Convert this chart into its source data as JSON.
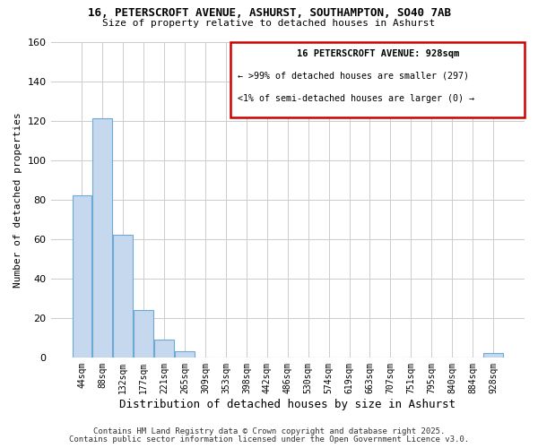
{
  "title": "16, PETERSCROFT AVENUE, ASHURST, SOUTHAMPTON, SO40 7AB",
  "subtitle": "Size of property relative to detached houses in Ashurst",
  "xlabel": "Distribution of detached houses by size in Ashurst",
  "ylabel": "Number of detached properties",
  "bar_values": [
    82,
    121,
    62,
    24,
    9,
    3,
    0,
    0,
    0,
    0,
    0,
    0,
    0,
    0,
    0,
    0,
    0,
    0,
    0,
    0,
    2
  ],
  "bar_labels": [
    "44sqm",
    "88sqm",
    "132sqm",
    "177sqm",
    "221sqm",
    "265sqm",
    "309sqm",
    "353sqm",
    "398sqm",
    "442sqm",
    "486sqm",
    "530sqm",
    "574sqm",
    "619sqm",
    "663sqm",
    "707sqm",
    "751sqm",
    "795sqm",
    "840sqm",
    "884sqm",
    "928sqm"
  ],
  "bar_color": "#c5d8ed",
  "bar_edge_color": "#6aaad4",
  "ylim": [
    0,
    160
  ],
  "yticks": [
    0,
    20,
    40,
    60,
    80,
    100,
    120,
    140,
    160
  ],
  "legend_title": "16 PETERSCROFT AVENUE: 928sqm",
  "legend_line1": "← >99% of detached houses are smaller (297)",
  "legend_line2": "<1% of semi-detached houses are larger (0) →",
  "legend_box_color": "#cc0000",
  "footer_line1": "Contains HM Land Registry data © Crown copyright and database right 2025.",
  "footer_line2": "Contains public sector information licensed under the Open Government Licence v3.0.",
  "grid_color": "#cccccc",
  "background_color": "#ffffff"
}
